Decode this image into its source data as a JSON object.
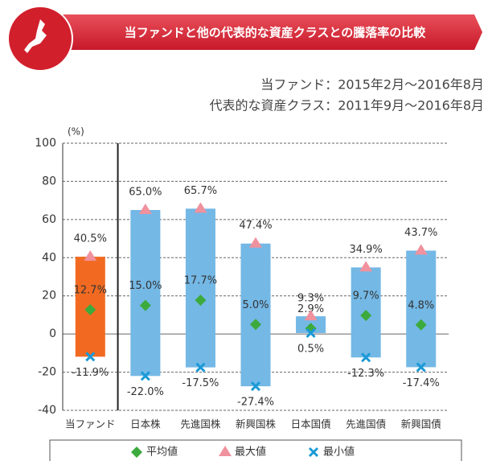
{
  "chart_data": {
    "type": "range",
    "title": "当ファンドと他の代表的な資産クラスとの騰落率の比較",
    "subtitle": [
      "当ファンド：2015年2月～2016年8月",
      "代表的な資産クラス：2011年9月～2016年8月"
    ],
    "y_label": "(%)",
    "categories": [
      "当ファンド",
      "日本株",
      "先進国株",
      "新興国株",
      "日本国債",
      "先進国債",
      "新興国債"
    ],
    "colors": [
      "#f26a21",
      "#74b8e6",
      "#74b8e6",
      "#74b8e6",
      "#74b8e6",
      "#74b8e6",
      "#74b8e6"
    ],
    "series": [
      {
        "name": "平均値",
        "color": "#3caa3c",
        "values": [
          12.7,
          15.0,
          17.7,
          5.0,
          2.9,
          9.7,
          4.8
        ],
        "value_labels": [
          "12.7%",
          "15.0%",
          "17.7%",
          "5.0%",
          "2.9%",
          "9.7%",
          "4.8%"
        ]
      },
      {
        "name": "最大値",
        "color": "#f0919e",
        "values": [
          40.5,
          65.0,
          65.7,
          47.4,
          9.3,
          34.9,
          43.7
        ],
        "value_labels": [
          "40.5%",
          "65.0%",
          "65.7%",
          "47.4%",
          "9.3%",
          "34.9%",
          "43.7%"
        ]
      },
      {
        "name": "最小値",
        "color": "#1b9ad6",
        "values": [
          -11.9,
          -22.0,
          -17.5,
          -27.4,
          0.5,
          -12.3,
          -17.4
        ],
        "value_labels": [
          "-11.9%",
          "-22.0%",
          "-17.5%",
          "-27.4%",
          "0.5%",
          "-12.3%",
          "-17.4%"
        ]
      }
    ],
    "ylim": [
      -40,
      100
    ],
    "yticks": [
      -40,
      -20,
      0,
      20,
      40,
      60,
      80,
      100
    ],
    "grid": true
  }
}
